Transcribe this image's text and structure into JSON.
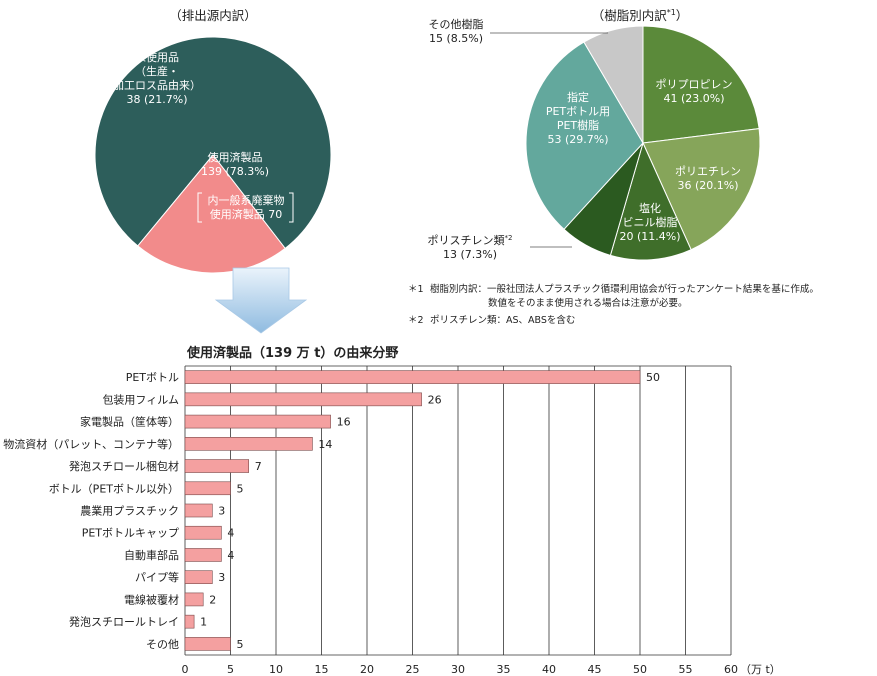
{
  "chart_data": [
    {
      "type": "pie",
      "title": "（排出源内訳）",
      "slices": [
        {
          "label_lines": [
            "使用済製品",
            "139 (78.3%)"
          ],
          "value": 139,
          "percent": 78.3,
          "color": "#2d5e5b"
        },
        {
          "label_lines": [
            "未使用品",
            "（生産・",
            "加工ロス品由来）",
            "38 (21.7%)"
          ],
          "value": 38,
          "percent": 21.7,
          "color": "#f28b8b"
        }
      ],
      "annotation_lines": [
        "内一般系廃棄物",
        "使用済製品 70"
      ]
    },
    {
      "type": "pie",
      "title": "（樹脂別内訳",
      "title_sup": "*1",
      "title_close": "）",
      "slices": [
        {
          "label_lines": [
            "ポリプロピレン",
            "41 (23.0%)"
          ],
          "value": 41,
          "percent": 23.0,
          "color": "#5b8a3a"
        },
        {
          "label_lines": [
            "ポリエチレン",
            "36 (20.1%)"
          ],
          "value": 36,
          "percent": 20.1,
          "color": "#86a55a"
        },
        {
          "label_lines": [
            "塩化",
            "ビニル樹脂",
            "20 (11.4%)"
          ],
          "value": 20,
          "percent": 11.4,
          "color": "#3f6e2a"
        },
        {
          "label_lines": [
            "ポリスチレン類",
            "13 (7.3%)"
          ],
          "label_sup": "*2",
          "value": 13,
          "percent": 7.3,
          "color": "#2b5a20"
        },
        {
          "label_lines": [
            "指定",
            "PETボトル用",
            "PET樹脂",
            "53 (29.7%)"
          ],
          "value": 53,
          "percent": 29.7,
          "color": "#63a89d"
        },
        {
          "label_lines": [
            "その他樹脂",
            "15 (8.5%)"
          ],
          "value": 15,
          "percent": 8.5,
          "color": "#c8c8c8"
        }
      ],
      "footnotes": [
        {
          "mark": "＊1",
          "lines": [
            "樹脂別内訳：一般社団法人プラスチック循環利用協会が行ったアンケート結果を基に作成。",
            "数値をそのまま使用される場合は注意が必要。"
          ]
        },
        {
          "mark": "＊2",
          "lines": [
            "ポリスチレン類：AS、ABSを含む"
          ]
        }
      ]
    },
    {
      "type": "bar",
      "orientation": "horizontal",
      "title": "使用済製品（139 万 t）の由来分野",
      "categories": [
        "PETボトル",
        "包装用フィルム",
        "家電製品（筐体等）",
        "物流資材（パレット、コンテナ等）",
        "発泡スチロール梱包材",
        "ボトル（PETボトル以外）",
        "農業用プラスチック",
        "PETボトルキャップ",
        "自動車部品",
        "パイプ等",
        "電線被覆材",
        "発泡スチロールトレイ",
        "その他"
      ],
      "values": [
        50,
        26,
        16,
        14,
        7,
        5,
        3,
        4,
        4,
        3,
        2,
        1,
        5
      ],
      "xlim": [
        0,
        60
      ],
      "xticks": [
        0,
        5,
        10,
        15,
        20,
        25,
        30,
        35,
        40,
        45,
        50,
        55,
        60
      ],
      "x_unit": "（万 t）",
      "bar_color": "#f4a0a0",
      "grid": true
    }
  ]
}
